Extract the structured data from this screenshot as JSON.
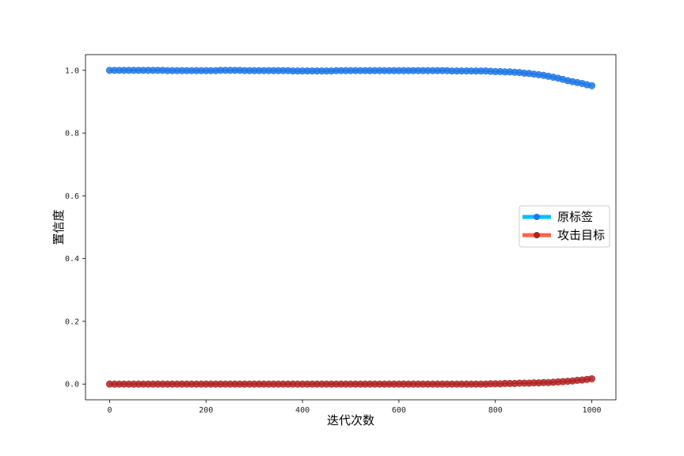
{
  "chart_data": {
    "type": "line",
    "xlabel": "迭代次数",
    "ylabel": "置信度",
    "xlim": [
      -50,
      1050
    ],
    "ylim": [
      -0.05,
      1.05
    ],
    "xticks": [
      0,
      200,
      400,
      600,
      800,
      1000
    ],
    "xtick_labels": [
      "0",
      "200",
      "400",
      "600",
      "800",
      "1000"
    ],
    "yticks": [
      0.0,
      0.2,
      0.4,
      0.6,
      0.8,
      1.0
    ],
    "ytick_labels": [
      "0.0",
      "0.2",
      "0.4",
      "0.6",
      "0.8",
      "1.0"
    ],
    "grid": false,
    "legend_position": "center-right",
    "x": [
      0,
      10,
      20,
      30,
      40,
      50,
      60,
      70,
      80,
      90,
      100,
      110,
      120,
      130,
      140,
      150,
      160,
      170,
      180,
      190,
      200,
      210,
      220,
      230,
      240,
      250,
      260,
      270,
      280,
      290,
      300,
      310,
      320,
      330,
      340,
      350,
      360,
      370,
      380,
      390,
      400,
      410,
      420,
      430,
      440,
      450,
      460,
      470,
      480,
      490,
      500,
      510,
      520,
      530,
      540,
      550,
      560,
      570,
      580,
      590,
      600,
      610,
      620,
      630,
      640,
      650,
      660,
      670,
      680,
      690,
      700,
      710,
      720,
      730,
      740,
      750,
      760,
      770,
      780,
      790,
      800,
      810,
      820,
      830,
      840,
      850,
      860,
      870,
      880,
      890,
      900,
      910,
      920,
      930,
      940,
      950,
      960,
      970,
      980,
      990,
      1000
    ],
    "series": [
      {
        "name": "原标签",
        "color": "#1f77e6",
        "legend_color": "#00bfff",
        "values": [
          1.0,
          1.0,
          1.0,
          1.0,
          1.0,
          1.0,
          1.0,
          1.0,
          1.0,
          1.0,
          1.0,
          1.0,
          0.999,
          0.999,
          0.999,
          0.999,
          0.999,
          0.999,
          0.999,
          0.999,
          0.999,
          0.999,
          0.999,
          1.0,
          1.0,
          1.0,
          1.0,
          1.0,
          0.999,
          0.999,
          0.999,
          0.999,
          0.999,
          0.999,
          0.999,
          0.999,
          0.999,
          0.999,
          0.998,
          0.998,
          0.998,
          0.998,
          0.998,
          0.998,
          0.998,
          0.998,
          0.998,
          0.999,
          0.999,
          0.999,
          0.999,
          0.999,
          0.999,
          0.999,
          0.999,
          0.999,
          0.999,
          0.999,
          0.999,
          0.999,
          0.999,
          0.999,
          0.999,
          0.999,
          0.999,
          0.999,
          0.999,
          0.999,
          0.999,
          0.999,
          0.999,
          0.998,
          0.998,
          0.998,
          0.998,
          0.998,
          0.998,
          0.998,
          0.998,
          0.997,
          0.996,
          0.996,
          0.995,
          0.995,
          0.994,
          0.993,
          0.991,
          0.99,
          0.988,
          0.986,
          0.984,
          0.981,
          0.978,
          0.975,
          0.971,
          0.967,
          0.964,
          0.961,
          0.958,
          0.954,
          0.951
        ]
      },
      {
        "name": "攻击目标",
        "color": "#b22222",
        "legend_color": "#ff6347",
        "values": [
          0.0,
          0.0,
          0.0,
          0.0,
          0.0,
          0.0,
          0.0,
          0.0,
          0.0,
          0.0,
          0.0,
          0.0,
          0.0,
          0.0,
          0.0,
          0.0,
          0.0,
          0.0,
          0.0,
          0.0,
          0.0,
          0.0,
          0.0,
          0.0,
          0.0,
          0.0,
          0.0,
          0.0,
          0.0,
          0.0,
          0.0,
          0.0,
          0.0,
          0.0,
          0.0,
          0.0,
          0.0,
          0.0,
          0.0,
          0.0,
          0.0,
          0.0,
          0.0,
          0.0,
          0.0,
          0.0,
          0.0,
          0.0,
          0.0,
          0.0,
          0.0,
          0.0,
          0.0,
          0.0,
          0.0,
          0.0,
          0.0,
          0.0,
          0.0,
          0.0,
          0.0,
          0.0,
          0.0,
          0.0,
          0.0,
          0.0,
          0.0,
          0.0,
          0.0,
          0.0,
          0.0,
          0.0,
          0.0,
          0.0,
          0.0,
          0.0,
          0.0,
          0.0,
          0.0,
          0.001,
          0.001,
          0.001,
          0.002,
          0.002,
          0.002,
          0.003,
          0.003,
          0.003,
          0.004,
          0.004,
          0.005,
          0.005,
          0.006,
          0.007,
          0.008,
          0.009,
          0.01,
          0.012,
          0.013,
          0.015,
          0.017
        ]
      }
    ]
  }
}
